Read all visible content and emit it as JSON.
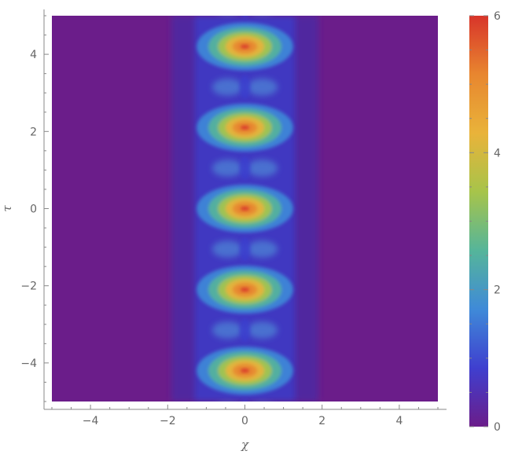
{
  "chart_data": {
    "type": "heatmap",
    "title": "",
    "xlabel": "χ",
    "ylabel": "τ",
    "xlim": [
      -5,
      5
    ],
    "ylim": [
      -5,
      5
    ],
    "x_ticks": [
      -4,
      -2,
      0,
      2,
      4
    ],
    "x_tick_labels": [
      "−4",
      "−2",
      "0",
      "2",
      "4"
    ],
    "y_ticks": [
      -4,
      -2,
      0,
      2,
      4
    ],
    "y_tick_labels": [
      "−4",
      "−2",
      "0",
      "2",
      "4"
    ],
    "colorbar": {
      "range": [
        0,
        6
      ],
      "ticks": [
        0,
        2,
        4,
        6
      ],
      "tick_labels": [
        "0",
        "2",
        "4",
        "6"
      ],
      "colors": [
        "#6b1d8a",
        "#3f3fcf",
        "#3f8ad8",
        "#55b59a",
        "#a7c44a",
        "#e9b33a",
        "#e8862f",
        "#d8342a"
      ]
    },
    "peaks": [
      {
        "x": 0,
        "y": -4.2,
        "value": 6
      },
      {
        "x": 0,
        "y": -2.1,
        "value": 6
      },
      {
        "x": 0,
        "y": 0,
        "value": 6
      },
      {
        "x": 0,
        "y": 2.1,
        "value": 6
      },
      {
        "x": 0,
        "y": 4.2,
        "value": 6
      }
    ],
    "period": 2.1,
    "grid": false
  }
}
